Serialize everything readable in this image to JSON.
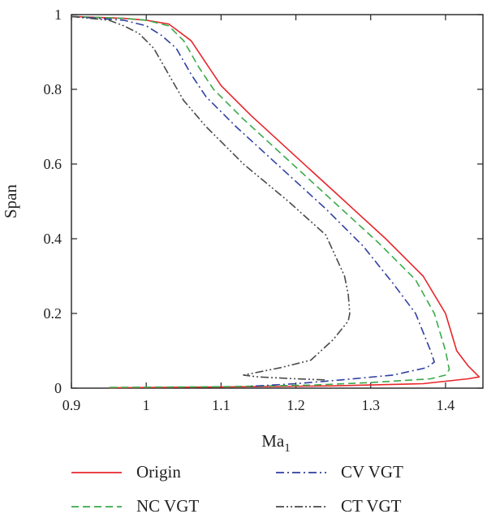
{
  "chart_data": {
    "type": "line",
    "xlabel": "Ma",
    "xlabel_sub": "1",
    "ylabel": "Span",
    "xlim": [
      0.9,
      1.45
    ],
    "ylim": [
      0,
      1
    ],
    "x_ticks": [
      0.9,
      1.0,
      1.1,
      1.2,
      1.3,
      1.4
    ],
    "x_tick_labels": [
      "0.9",
      "1",
      "1.1",
      "1.2",
      "1.3",
      "1.4"
    ],
    "y_ticks": [
      0,
      0.2,
      0.4,
      0.6,
      0.8,
      1.0
    ],
    "y_tick_labels": [
      "0",
      "0.2",
      "0.4",
      "0.6",
      "0.8",
      "1"
    ],
    "grid": false,
    "legend_position": "bottom",
    "series": [
      {
        "name": "Origin",
        "color": "#e8262b",
        "dash": "solid",
        "points": [
          [
            0.9,
            0.995
          ],
          [
            0.97,
            0.99
          ],
          [
            1.0,
            0.985
          ],
          [
            1.03,
            0.975
          ],
          [
            1.04,
            0.96
          ],
          [
            1.06,
            0.93
          ],
          [
            1.08,
            0.87
          ],
          [
            1.1,
            0.81
          ],
          [
            1.14,
            0.73
          ],
          [
            1.2,
            0.62
          ],
          [
            1.26,
            0.51
          ],
          [
            1.32,
            0.4
          ],
          [
            1.37,
            0.3
          ],
          [
            1.4,
            0.2
          ],
          [
            1.415,
            0.1
          ],
          [
            1.43,
            0.06
          ],
          [
            1.44,
            0.04
          ],
          [
            1.445,
            0.03
          ],
          [
            1.43,
            0.025
          ],
          [
            1.37,
            0.012
          ],
          [
            1.25,
            0.006
          ],
          [
            1.1,
            0.003
          ],
          [
            0.95,
            0.001
          ]
        ]
      },
      {
        "name": "NC VGT",
        "color": "#3aaa4a",
        "dash": "dashed",
        "points": [
          [
            0.9,
            0.995
          ],
          [
            0.97,
            0.99
          ],
          [
            1.0,
            0.985
          ],
          [
            1.03,
            0.97
          ],
          [
            1.05,
            0.93
          ],
          [
            1.07,
            0.86
          ],
          [
            1.09,
            0.8
          ],
          [
            1.13,
            0.72
          ],
          [
            1.19,
            0.61
          ],
          [
            1.25,
            0.5
          ],
          [
            1.31,
            0.39
          ],
          [
            1.36,
            0.29
          ],
          [
            1.385,
            0.2
          ],
          [
            1.4,
            0.1
          ],
          [
            1.405,
            0.05
          ],
          [
            1.4,
            0.035
          ],
          [
            1.38,
            0.025
          ],
          [
            1.3,
            0.015
          ],
          [
            1.22,
            0.008
          ],
          [
            1.1,
            0.004
          ],
          [
            0.95,
            0.002
          ]
        ]
      },
      {
        "name": "CV VGT",
        "color": "#2f3fa0",
        "dash": "dashdot",
        "points": [
          [
            0.9,
            0.995
          ],
          [
            0.97,
            0.985
          ],
          [
            1.0,
            0.97
          ],
          [
            1.02,
            0.945
          ],
          [
            1.04,
            0.91
          ],
          [
            1.06,
            0.84
          ],
          [
            1.08,
            0.78
          ],
          [
            1.12,
            0.7
          ],
          [
            1.18,
            0.59
          ],
          [
            1.24,
            0.48
          ],
          [
            1.29,
            0.38
          ],
          [
            1.33,
            0.28
          ],
          [
            1.36,
            0.2
          ],
          [
            1.38,
            0.1
          ],
          [
            1.385,
            0.07
          ],
          [
            1.375,
            0.055
          ],
          [
            1.33,
            0.035
          ],
          [
            1.26,
            0.022
          ],
          [
            1.2,
            0.012
          ],
          [
            1.14,
            0.005
          ]
        ]
      },
      {
        "name": "CT VGT",
        "color": "#4a4a4a",
        "dash": "dashdotdot",
        "points": [
          [
            0.9,
            0.995
          ],
          [
            0.95,
            0.985
          ],
          [
            0.97,
            0.97
          ],
          [
            0.99,
            0.95
          ],
          [
            1.01,
            0.91
          ],
          [
            1.03,
            0.84
          ],
          [
            1.05,
            0.77
          ],
          [
            1.08,
            0.7
          ],
          [
            1.13,
            0.6
          ],
          [
            1.19,
            0.5
          ],
          [
            1.24,
            0.41
          ],
          [
            1.265,
            0.3
          ],
          [
            1.27,
            0.25
          ],
          [
            1.272,
            0.2
          ],
          [
            1.27,
            0.18
          ],
          [
            1.25,
            0.13
          ],
          [
            1.22,
            0.075
          ],
          [
            1.18,
            0.055
          ],
          [
            1.13,
            0.035
          ],
          [
            1.15,
            0.03
          ],
          [
            1.2,
            0.025
          ],
          [
            1.24,
            0.022
          ]
        ]
      }
    ]
  }
}
